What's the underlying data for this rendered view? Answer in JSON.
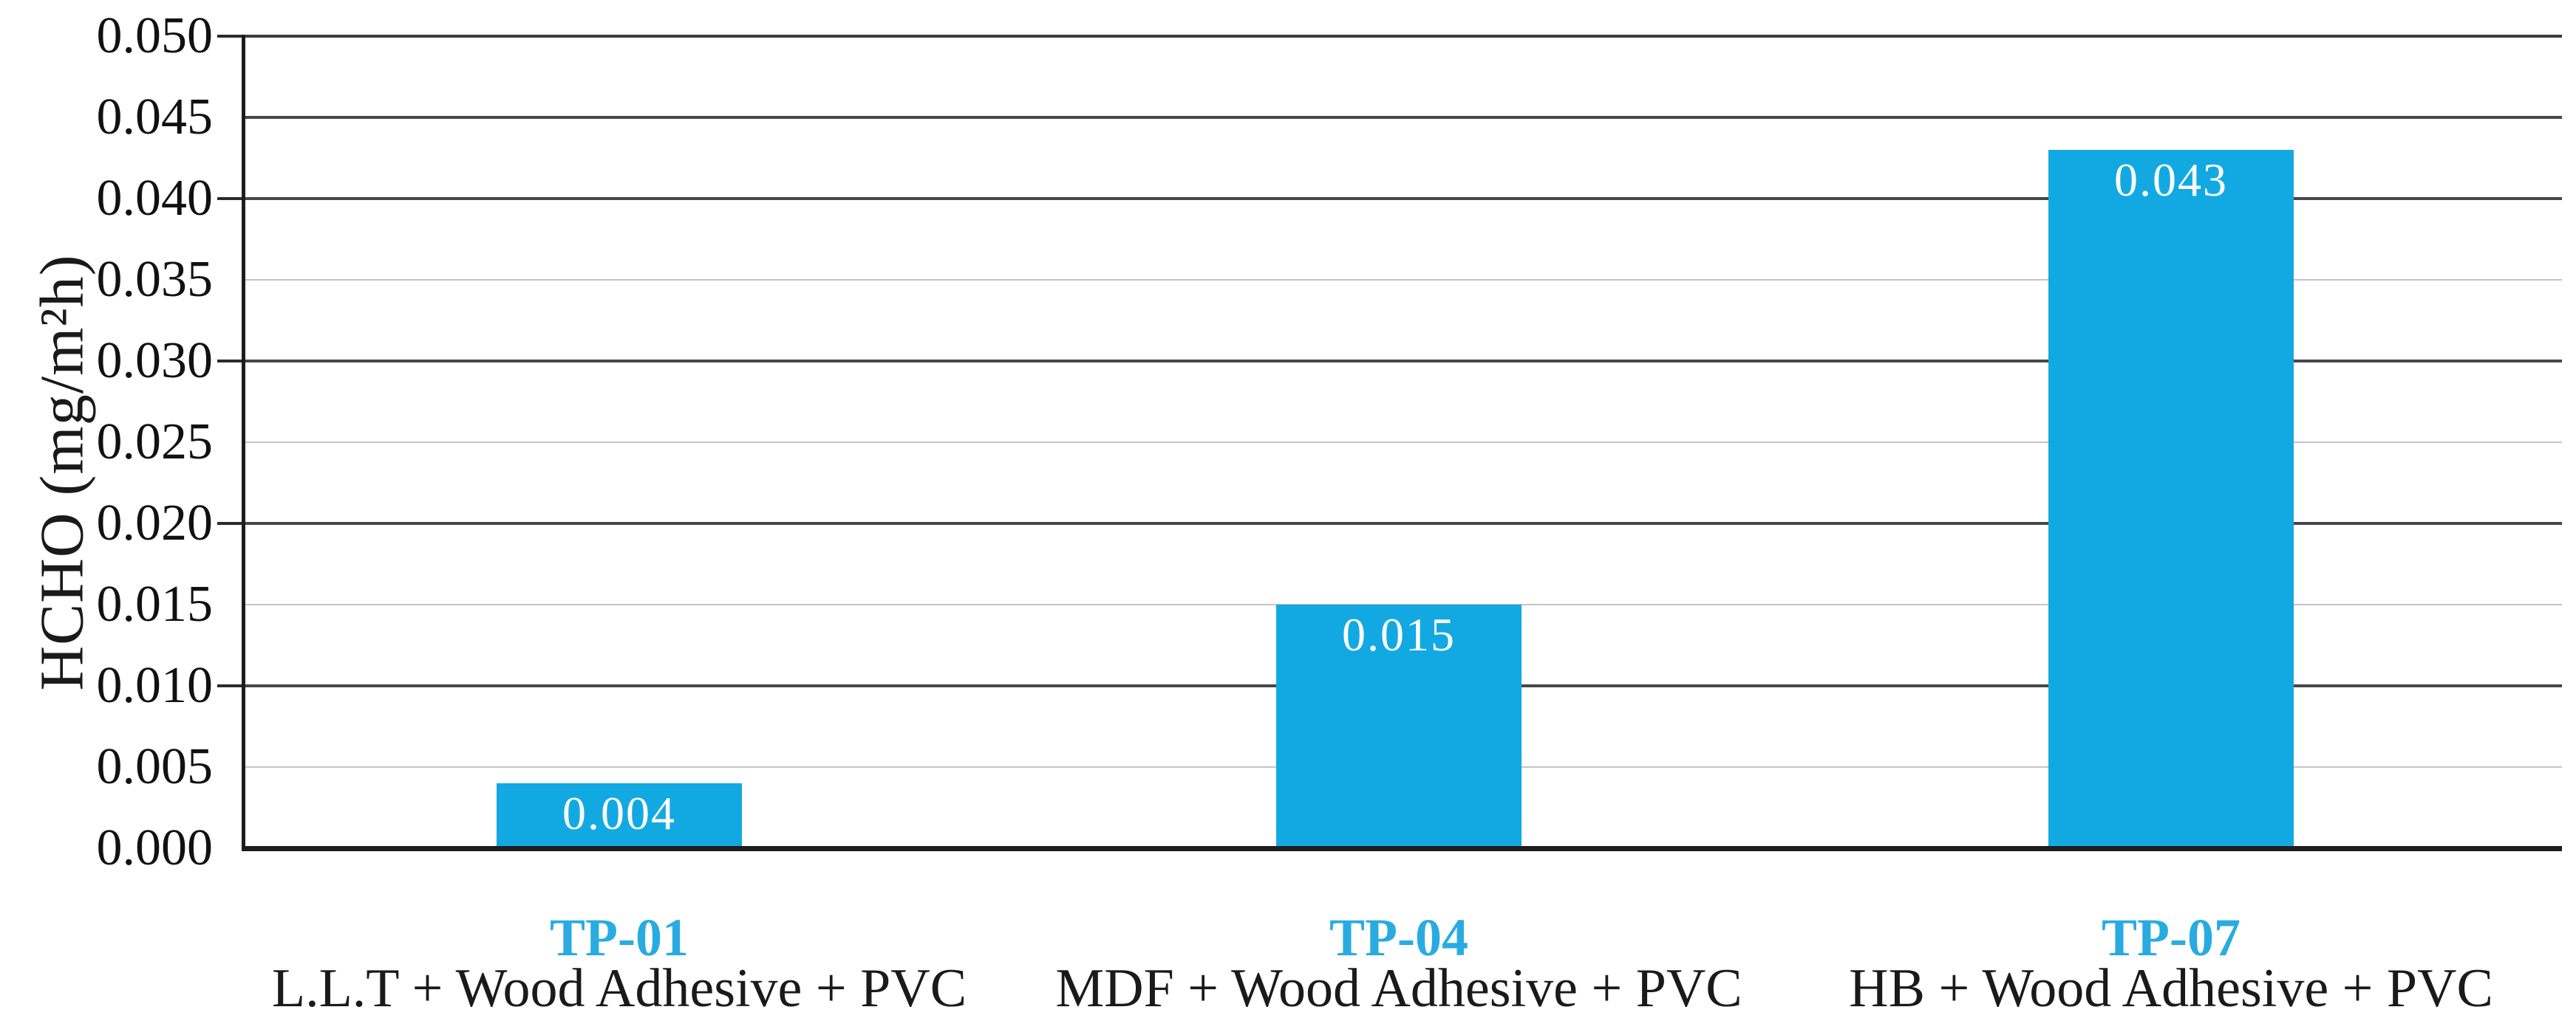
{
  "chart_data": {
    "type": "bar",
    "title": "",
    "xlabel": "",
    "ylabel": "HCHO (mg/m²h)",
    "ylim": [
      0.0,
      0.05
    ],
    "ytick_step": 0.005,
    "ytick_labels": [
      "0.050",
      "0.045",
      "0.040",
      "0.035",
      "0.030",
      "0.025",
      "0.020",
      "0.015",
      "0.010",
      "0.005",
      "0.000"
    ],
    "outer_tick_values": [
      0.05,
      0.04,
      0.03,
      0.02,
      0.01
    ],
    "major_gridline_values": [
      0.045,
      0.04,
      0.03,
      0.02,
      0.01
    ],
    "minor_gridline_values": [
      0.035,
      0.025,
      0.015,
      0.005
    ],
    "grid": "horizontal",
    "legend": false,
    "categories": [
      {
        "code": "TP-01",
        "composition": "L.L.T + Wood Adhesive + PVC"
      },
      {
        "code": "TP-04",
        "composition": "MDF + Wood Adhesive + PVC"
      },
      {
        "code": "TP-07",
        "composition": "HB + Wood Adhesive + PVC"
      }
    ],
    "values": [
      0.004,
      0.015,
      0.043
    ],
    "bar_labels": [
      "0.004",
      "0.015",
      "0.043"
    ],
    "colors": {
      "bar_fill": "#12a9e3",
      "bar_label_text": "#ffffff",
      "category_code_text": "#29abe2",
      "composition_text": "#1a1a1a",
      "axis_line": "#1d1d1d",
      "major_gridline": "#474747",
      "minor_gridline": "#c4c4c4",
      "tick_label_text": "#111111",
      "background": "#ffffff"
    }
  }
}
